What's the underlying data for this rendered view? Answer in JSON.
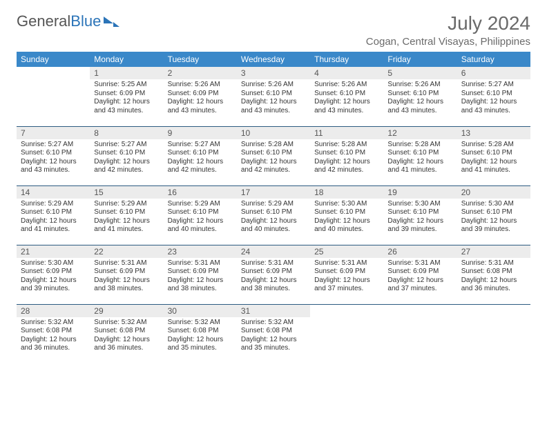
{
  "logo": {
    "text1": "General",
    "text2": "Blue"
  },
  "title": "July 2024",
  "location": "Cogan, Central Visayas, Philippines",
  "colors": {
    "header_bg": "#3a88c9",
    "header_text": "#ffffff",
    "daynum_bg": "#ececec",
    "rule": "#2b5a80",
    "body_text": "#333333",
    "title_text": "#6a6a6a",
    "logo_blue": "#2b74b8"
  },
  "weekdays": [
    "Sunday",
    "Monday",
    "Tuesday",
    "Wednesday",
    "Thursday",
    "Friday",
    "Saturday"
  ],
  "weeks": [
    [
      null,
      {
        "n": "1",
        "sunrise": "Sunrise: 5:25 AM",
        "sunset": "Sunset: 6:09 PM",
        "day": "Daylight: 12 hours and 43 minutes."
      },
      {
        "n": "2",
        "sunrise": "Sunrise: 5:26 AM",
        "sunset": "Sunset: 6:09 PM",
        "day": "Daylight: 12 hours and 43 minutes."
      },
      {
        "n": "3",
        "sunrise": "Sunrise: 5:26 AM",
        "sunset": "Sunset: 6:10 PM",
        "day": "Daylight: 12 hours and 43 minutes."
      },
      {
        "n": "4",
        "sunrise": "Sunrise: 5:26 AM",
        "sunset": "Sunset: 6:10 PM",
        "day": "Daylight: 12 hours and 43 minutes."
      },
      {
        "n": "5",
        "sunrise": "Sunrise: 5:26 AM",
        "sunset": "Sunset: 6:10 PM",
        "day": "Daylight: 12 hours and 43 minutes."
      },
      {
        "n": "6",
        "sunrise": "Sunrise: 5:27 AM",
        "sunset": "Sunset: 6:10 PM",
        "day": "Daylight: 12 hours and 43 minutes."
      }
    ],
    [
      {
        "n": "7",
        "sunrise": "Sunrise: 5:27 AM",
        "sunset": "Sunset: 6:10 PM",
        "day": "Daylight: 12 hours and 43 minutes."
      },
      {
        "n": "8",
        "sunrise": "Sunrise: 5:27 AM",
        "sunset": "Sunset: 6:10 PM",
        "day": "Daylight: 12 hours and 42 minutes."
      },
      {
        "n": "9",
        "sunrise": "Sunrise: 5:27 AM",
        "sunset": "Sunset: 6:10 PM",
        "day": "Daylight: 12 hours and 42 minutes."
      },
      {
        "n": "10",
        "sunrise": "Sunrise: 5:28 AM",
        "sunset": "Sunset: 6:10 PM",
        "day": "Daylight: 12 hours and 42 minutes."
      },
      {
        "n": "11",
        "sunrise": "Sunrise: 5:28 AM",
        "sunset": "Sunset: 6:10 PM",
        "day": "Daylight: 12 hours and 42 minutes."
      },
      {
        "n": "12",
        "sunrise": "Sunrise: 5:28 AM",
        "sunset": "Sunset: 6:10 PM",
        "day": "Daylight: 12 hours and 41 minutes."
      },
      {
        "n": "13",
        "sunrise": "Sunrise: 5:28 AM",
        "sunset": "Sunset: 6:10 PM",
        "day": "Daylight: 12 hours and 41 minutes."
      }
    ],
    [
      {
        "n": "14",
        "sunrise": "Sunrise: 5:29 AM",
        "sunset": "Sunset: 6:10 PM",
        "day": "Daylight: 12 hours and 41 minutes."
      },
      {
        "n": "15",
        "sunrise": "Sunrise: 5:29 AM",
        "sunset": "Sunset: 6:10 PM",
        "day": "Daylight: 12 hours and 41 minutes."
      },
      {
        "n": "16",
        "sunrise": "Sunrise: 5:29 AM",
        "sunset": "Sunset: 6:10 PM",
        "day": "Daylight: 12 hours and 40 minutes."
      },
      {
        "n": "17",
        "sunrise": "Sunrise: 5:29 AM",
        "sunset": "Sunset: 6:10 PM",
        "day": "Daylight: 12 hours and 40 minutes."
      },
      {
        "n": "18",
        "sunrise": "Sunrise: 5:30 AM",
        "sunset": "Sunset: 6:10 PM",
        "day": "Daylight: 12 hours and 40 minutes."
      },
      {
        "n": "19",
        "sunrise": "Sunrise: 5:30 AM",
        "sunset": "Sunset: 6:10 PM",
        "day": "Daylight: 12 hours and 39 minutes."
      },
      {
        "n": "20",
        "sunrise": "Sunrise: 5:30 AM",
        "sunset": "Sunset: 6:10 PM",
        "day": "Daylight: 12 hours and 39 minutes."
      }
    ],
    [
      {
        "n": "21",
        "sunrise": "Sunrise: 5:30 AM",
        "sunset": "Sunset: 6:09 PM",
        "day": "Daylight: 12 hours and 39 minutes."
      },
      {
        "n": "22",
        "sunrise": "Sunrise: 5:31 AM",
        "sunset": "Sunset: 6:09 PM",
        "day": "Daylight: 12 hours and 38 minutes."
      },
      {
        "n": "23",
        "sunrise": "Sunrise: 5:31 AM",
        "sunset": "Sunset: 6:09 PM",
        "day": "Daylight: 12 hours and 38 minutes."
      },
      {
        "n": "24",
        "sunrise": "Sunrise: 5:31 AM",
        "sunset": "Sunset: 6:09 PM",
        "day": "Daylight: 12 hours and 38 minutes."
      },
      {
        "n": "25",
        "sunrise": "Sunrise: 5:31 AM",
        "sunset": "Sunset: 6:09 PM",
        "day": "Daylight: 12 hours and 37 minutes."
      },
      {
        "n": "26",
        "sunrise": "Sunrise: 5:31 AM",
        "sunset": "Sunset: 6:09 PM",
        "day": "Daylight: 12 hours and 37 minutes."
      },
      {
        "n": "27",
        "sunrise": "Sunrise: 5:31 AM",
        "sunset": "Sunset: 6:08 PM",
        "day": "Daylight: 12 hours and 36 minutes."
      }
    ],
    [
      {
        "n": "28",
        "sunrise": "Sunrise: 5:32 AM",
        "sunset": "Sunset: 6:08 PM",
        "day": "Daylight: 12 hours and 36 minutes."
      },
      {
        "n": "29",
        "sunrise": "Sunrise: 5:32 AM",
        "sunset": "Sunset: 6:08 PM",
        "day": "Daylight: 12 hours and 36 minutes."
      },
      {
        "n": "30",
        "sunrise": "Sunrise: 5:32 AM",
        "sunset": "Sunset: 6:08 PM",
        "day": "Daylight: 12 hours and 35 minutes."
      },
      {
        "n": "31",
        "sunrise": "Sunrise: 5:32 AM",
        "sunset": "Sunset: 6:08 PM",
        "day": "Daylight: 12 hours and 35 minutes."
      },
      null,
      null,
      null
    ]
  ]
}
